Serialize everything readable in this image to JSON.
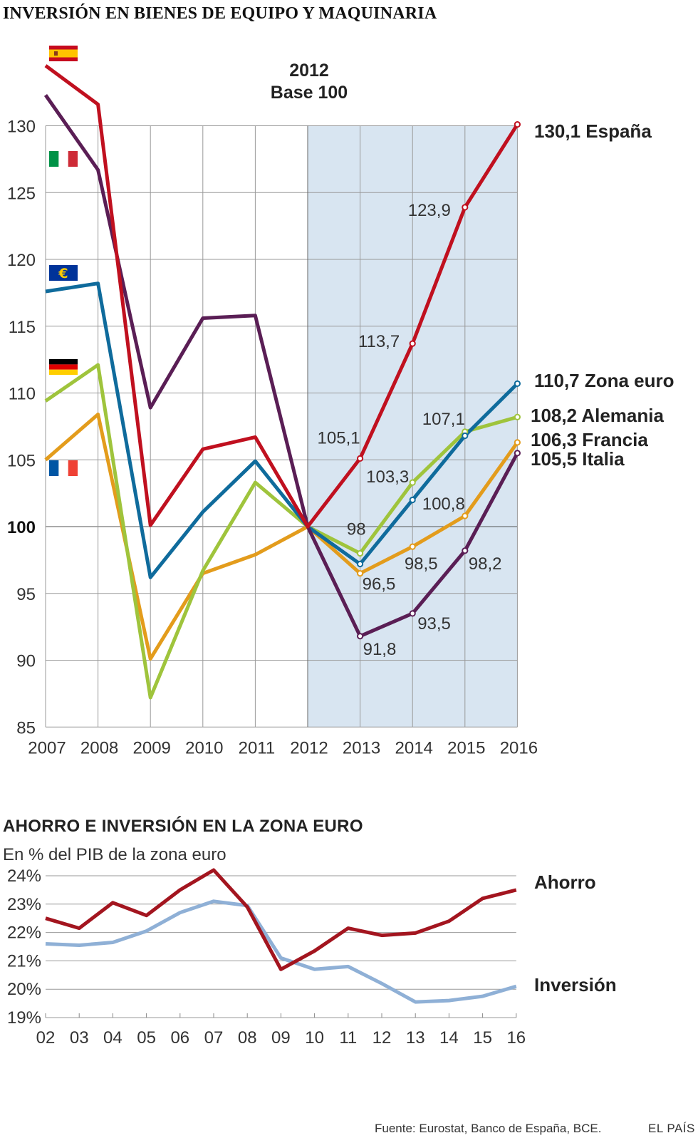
{
  "figure_title": "INVERSIÓN EN BIENES DE EQUIPO Y MAQUINARIA",
  "annotation_year": "2012",
  "annotation_base": "Base 100",
  "footer": {
    "source": "Fuente: Eurostat, Banco de España, BCE.",
    "brand": "EL PAÍS"
  },
  "colors": {
    "espana": "#c0101f",
    "italia": "#5a1e55",
    "zona_euro": "#0f6b9c",
    "alemania": "#9fc43c",
    "francia": "#e39c1c",
    "ahorro": "#a3151f",
    "inversion": "#8fb0d6",
    "shade": "#d8e5f1"
  },
  "chart_data": [
    {
      "type": "line",
      "title": "INVERSIÓN EN BIENES DE EQUIPO Y MAQUINARIA",
      "x": [
        "2007",
        "2008",
        "2009",
        "2010",
        "2011",
        "2012",
        "2013",
        "2014",
        "2015",
        "2016"
      ],
      "ylim": [
        85,
        130
      ],
      "yticks": [
        "130",
        "125",
        "120",
        "115",
        "110",
        "105",
        "100",
        "95",
        "90",
        "85"
      ],
      "grid": true,
      "shaded_from": "2012",
      "series": [
        {
          "name": "España",
          "flag": "spain-flag",
          "end_label": "130,1 España",
          "values": [
            134.5,
            131.6,
            100.1,
            105.8,
            106.7,
            100,
            105.1,
            113.7,
            123.9,
            130.1
          ]
        },
        {
          "name": "Italia",
          "flag": "italy-flag",
          "end_label": "105,5 Italia",
          "values": [
            132.3,
            126.7,
            108.9,
            115.6,
            115.8,
            100,
            91.8,
            93.5,
            98.2,
            105.5
          ]
        },
        {
          "name": "Zona euro",
          "flag": "eu-flag",
          "end_label": "110,7 Zona euro",
          "values": [
            117.6,
            118.2,
            96.2,
            101.1,
            104.9,
            100,
            97.2,
            102.0,
            106.8,
            110.7
          ]
        },
        {
          "name": "Alemania",
          "flag": "germany-flag",
          "end_label": "108,2 Alemania",
          "values": [
            109.4,
            112.1,
            87.2,
            96.7,
            103.3,
            100,
            98,
            103.3,
            107.1,
            108.2
          ]
        },
        {
          "name": "Francia",
          "flag": "france-flag",
          "end_label": "106,3 Francia",
          "values": [
            105.0,
            108.4,
            90.1,
            96.5,
            97.9,
            100,
            96.5,
            98.5,
            100.8,
            106.3
          ]
        }
      ],
      "point_labels": [
        {
          "text": "123,9"
        },
        {
          "text": "113,7"
        },
        {
          "text": "105,1"
        },
        {
          "text": "107,1"
        },
        {
          "text": "103,3"
        },
        {
          "text": "100,8"
        },
        {
          "text": "98"
        },
        {
          "text": "98,5"
        },
        {
          "text": "98,2"
        },
        {
          "text": "96,5"
        },
        {
          "text": "93,5"
        },
        {
          "text": "91,8"
        }
      ]
    },
    {
      "type": "line",
      "title": "AHORRO E INVERSIÓN EN LA ZONA EURO",
      "subtitle": "En % del PIB de la zona euro",
      "x": [
        "02",
        "03",
        "04",
        "05",
        "06",
        "07",
        "08",
        "09",
        "10",
        "11",
        "12",
        "13",
        "14",
        "15",
        "16"
      ],
      "ylim": [
        19,
        24
      ],
      "yticks": [
        "24%",
        "23%",
        "22%",
        "21%",
        "20%",
        "19%"
      ],
      "grid": true,
      "series": [
        {
          "name": "Ahorro",
          "values": [
            22.5,
            22.15,
            23.05,
            22.6,
            23.5,
            24.2,
            22.9,
            20.7,
            21.35,
            22.15,
            21.9,
            21.98,
            22.4,
            23.2,
            23.5
          ]
        },
        {
          "name": "Inversión",
          "values": [
            21.6,
            21.55,
            21.65,
            22.05,
            22.7,
            23.1,
            22.95,
            21.1,
            20.7,
            20.8,
            20.2,
            19.55,
            19.6,
            19.75,
            20.1
          ]
        }
      ]
    }
  ]
}
